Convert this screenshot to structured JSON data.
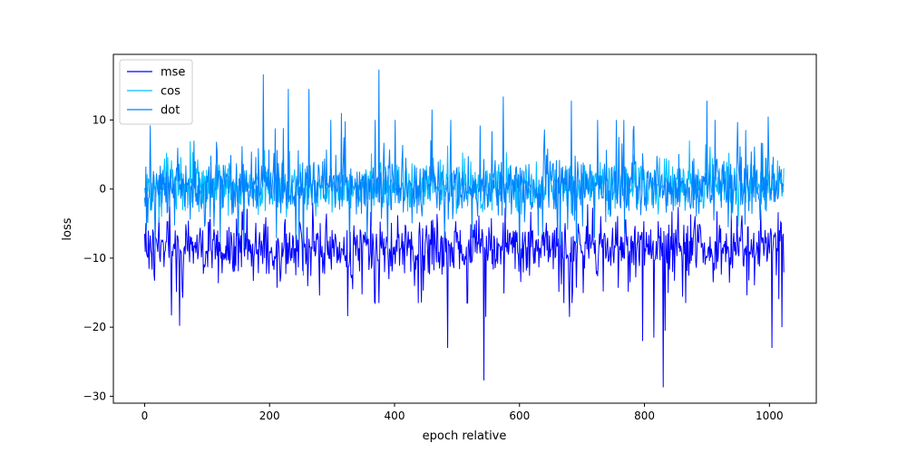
{
  "chart_data": {
    "type": "line",
    "title": "",
    "xlabel": "epoch relative",
    "ylabel": "loss",
    "xlim": [
      -50,
      1075
    ],
    "ylim": [
      -31,
      19.5
    ],
    "xticks": [
      0,
      200,
      400,
      600,
      800,
      1000
    ],
    "yticks": [
      -30,
      -20,
      -10,
      0,
      10
    ],
    "legend_position": "top-left",
    "grid": false,
    "x": {
      "start": 0,
      "end": 1023,
      "count": 1024
    },
    "series": [
      {
        "name": "mse",
        "color": "#0000ff",
        "baseline": -8.5,
        "low_spikes": [
          [
            485,
            -23
          ],
          [
            543,
            -27.7
          ],
          [
            546,
            -18.5
          ],
          [
            680,
            -18.5
          ],
          [
            797,
            -22
          ],
          [
            815,
            -21.5
          ],
          [
            830,
            -28.7
          ],
          [
            833,
            -20.5
          ],
          [
            1004,
            -23
          ],
          [
            1020,
            -20
          ],
          [
            56,
            -19.8
          ],
          [
            43,
            -18.3
          ],
          [
            325,
            -18.4
          ]
        ]
      },
      {
        "name": "cos",
        "color": "#00bfff",
        "baseline": 0.3
      },
      {
        "name": "dot",
        "color": "#0080ff",
        "baseline": 0.3,
        "high_spikes": [
          [
            190,
            16.6
          ],
          [
            375,
            17.3
          ],
          [
            230,
            14.5
          ],
          [
            263,
            14.5
          ],
          [
            574,
            13.4
          ],
          [
            683,
            12.8
          ],
          [
            900,
            12.8
          ],
          [
            998,
            10.5
          ],
          [
            315,
            11
          ],
          [
            460,
            11.5
          ]
        ]
      }
    ]
  }
}
